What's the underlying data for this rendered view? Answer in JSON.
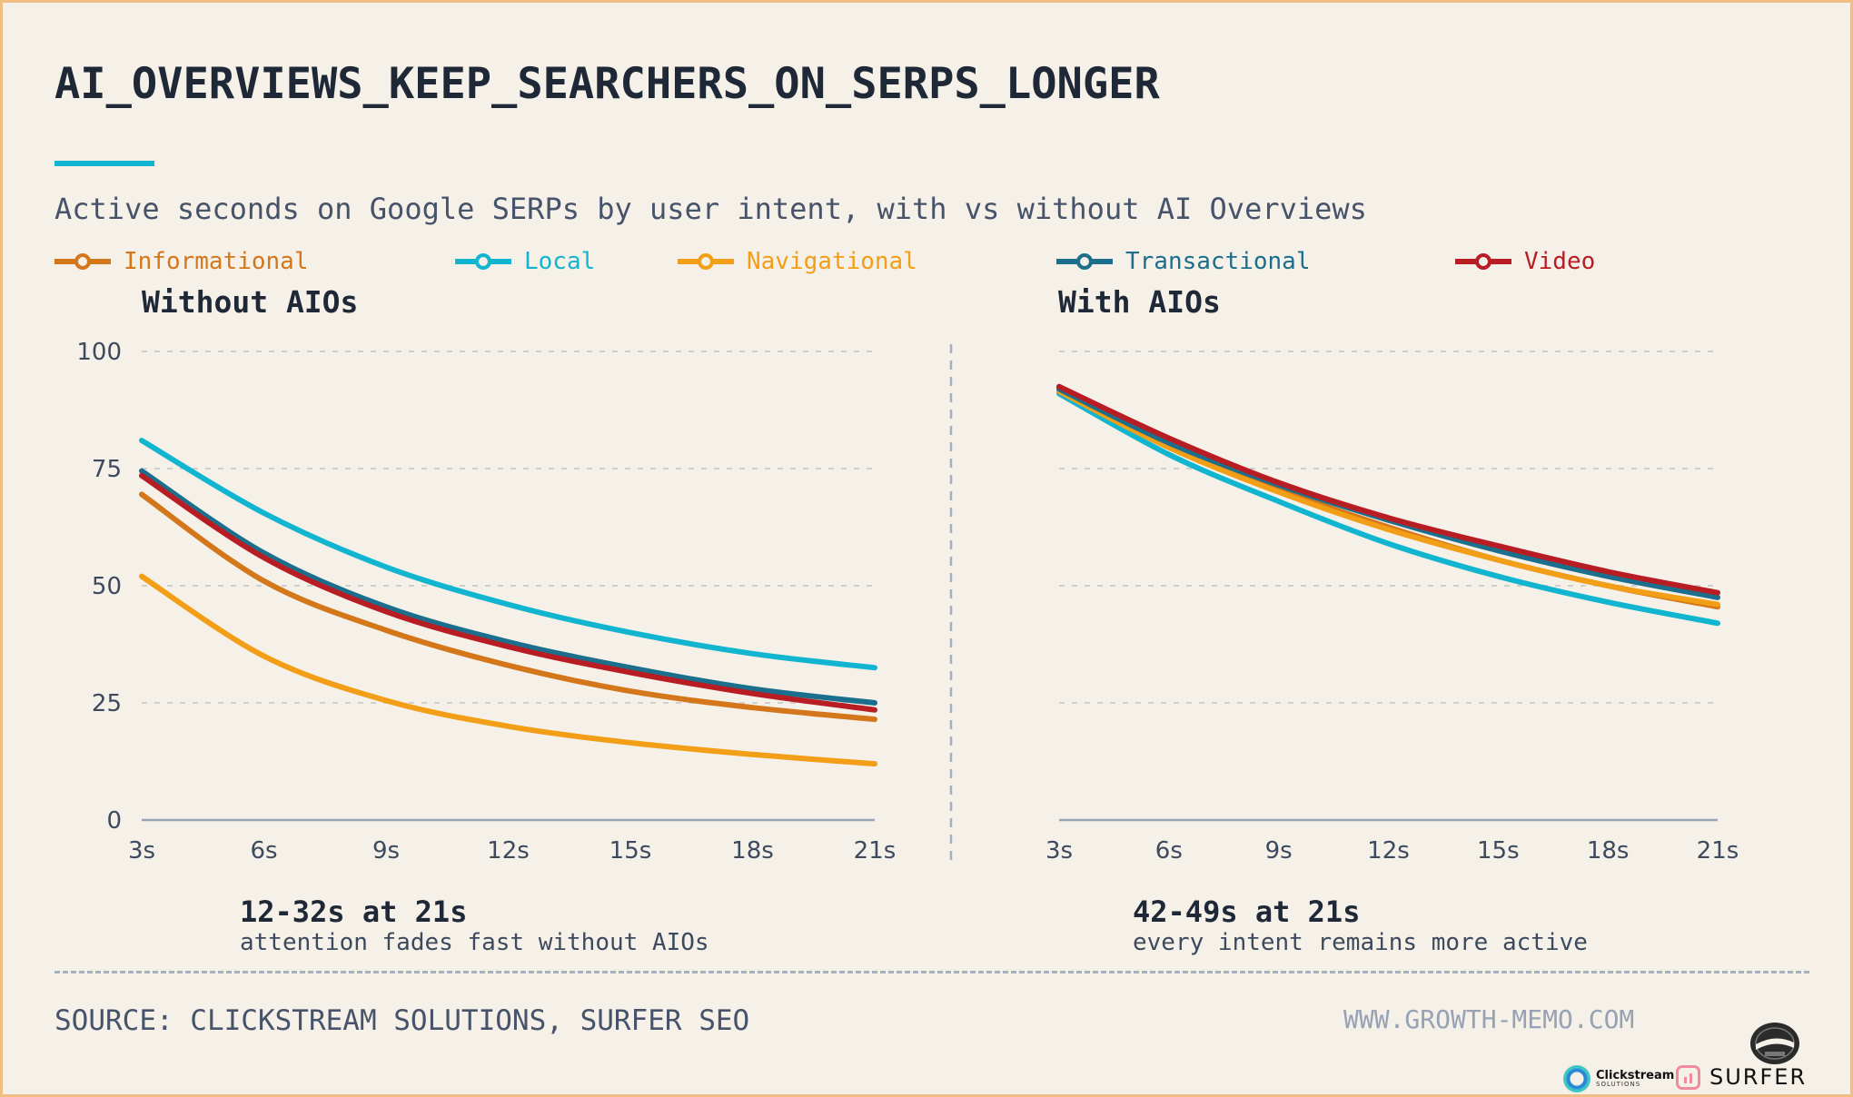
{
  "title": "AI_OVERVIEWS_KEEP_SEARCHERS_ON_SERPS_LONGER",
  "subtitle": "Active seconds on Google SERPs by user intent, with vs without AI Overviews",
  "colors": {
    "background": "#f5f0e8",
    "border": "#f0bd82",
    "accent": "#12b5cf",
    "title": "#1e2836",
    "grid": "#cfcfcf",
    "axis": "#98a4b5",
    "tick_text": "#3d4a5e"
  },
  "legend": [
    {
      "name": "Informational",
      "color": "#d4761a"
    },
    {
      "name": "Local",
      "color": "#12b5cf"
    },
    {
      "name": "Navigational",
      "color": "#f29e16"
    },
    {
      "name": "Transactional",
      "color": "#1b6f8c"
    },
    {
      "name": "Video",
      "color": "#b81d24"
    }
  ],
  "chart_data": [
    {
      "type": "line",
      "title": "Without AIOs",
      "x": [
        "3s",
        "6s",
        "9s",
        "12s",
        "15s",
        "18s",
        "21s"
      ],
      "ylim": [
        0,
        100
      ],
      "yticks": [
        0,
        25,
        50,
        75,
        100
      ],
      "grid": true,
      "series": [
        {
          "name": "Informational",
          "color": "#d4761a",
          "values": [
            69.5,
            51,
            40.5,
            33,
            27.5,
            24,
            21.5
          ]
        },
        {
          "name": "Local",
          "color": "#12b5cf",
          "values": [
            81,
            65.5,
            54,
            46,
            40,
            35.5,
            32.5
          ]
        },
        {
          "name": "Navigational",
          "color": "#f29e16",
          "values": [
            52,
            35,
            25.5,
            20,
            16.5,
            14,
            12
          ]
        },
        {
          "name": "Transactional",
          "color": "#1b6f8c",
          "values": [
            74.5,
            57,
            45.5,
            38,
            32.5,
            28,
            25
          ]
        },
        {
          "name": "Video",
          "color": "#b81d24",
          "values": [
            73.5,
            56,
            44.5,
            37,
            31.5,
            27,
            23.5
          ]
        }
      ],
      "annotation": {
        "headline": "12-32s at 21s",
        "note": "attention fades fast without AIOs"
      }
    },
    {
      "type": "line",
      "title": "With AIOs",
      "x": [
        "3s",
        "6s",
        "9s",
        "12s",
        "15s",
        "18s",
        "21s"
      ],
      "ylim": [
        0,
        100
      ],
      "yticks": [
        0,
        25,
        50,
        75,
        100
      ],
      "grid": true,
      "series": [
        {
          "name": "Informational",
          "color": "#d4761a",
          "values": [
            92,
            80,
            70.5,
            62.5,
            55.5,
            50,
            45.5
          ]
        },
        {
          "name": "Local",
          "color": "#12b5cf",
          "values": [
            91,
            78,
            68,
            59,
            52,
            46.5,
            42
          ]
        },
        {
          "name": "Navigational",
          "color": "#f29e16",
          "values": [
            91.5,
            79.5,
            70,
            62,
            55.5,
            50,
            46
          ]
        },
        {
          "name": "Transactional",
          "color": "#1b6f8c",
          "values": [
            92,
            80.5,
            71.5,
            64,
            57.5,
            52,
            47.5
          ]
        },
        {
          "name": "Video",
          "color": "#b81d24",
          "values": [
            92.5,
            81.5,
            72,
            64.5,
            58.5,
            53,
            48.5
          ]
        }
      ],
      "annotation": {
        "headline": "42-49s at 21s",
        "note": "every intent remains more active"
      }
    }
  ],
  "footer": {
    "source": "SOURCE: CLICKSTREAM SOLUTIONS, SURFER SEO",
    "website": "WWW.GROWTH-MEMO.COM",
    "logos": {
      "clickstream": {
        "name": "Clickstream",
        "tagline": "SOLUTIONS"
      },
      "surfer": "SURFER",
      "growth_memo": "GROWTH MEMO"
    }
  }
}
